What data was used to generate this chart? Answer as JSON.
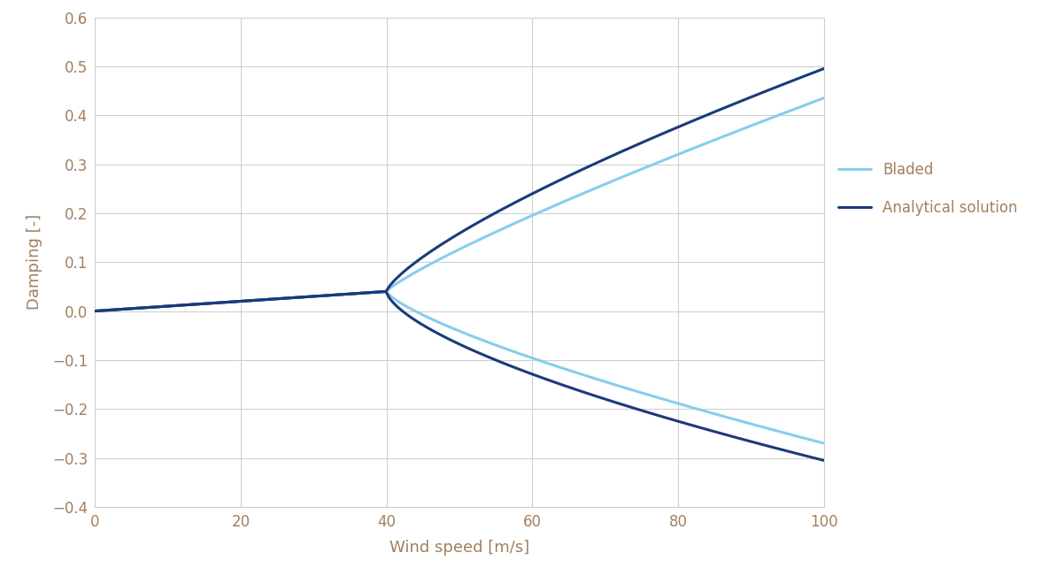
{
  "title": "",
  "xlabel": "Wind speed [m/s]",
  "ylabel": "Damping [-]",
  "xlim": [
    0,
    100
  ],
  "ylim": [
    -0.4,
    0.6
  ],
  "yticks": [
    -0.4,
    -0.3,
    -0.2,
    -0.1,
    0,
    0.1,
    0.2,
    0.3,
    0.4,
    0.5,
    0.6
  ],
  "xticks": [
    0,
    20,
    40,
    60,
    80,
    100
  ],
  "bladed_color": "#87CEEB",
  "analytical_color": "#1B3A7A",
  "legend_labels": [
    "Bladed",
    "Analytical solution"
  ],
  "background_color": "#ffffff",
  "grid_color": "#d0d0d0",
  "label_color": "#A08060",
  "tick_color": "#A08060",
  "linewidth": 2.2
}
